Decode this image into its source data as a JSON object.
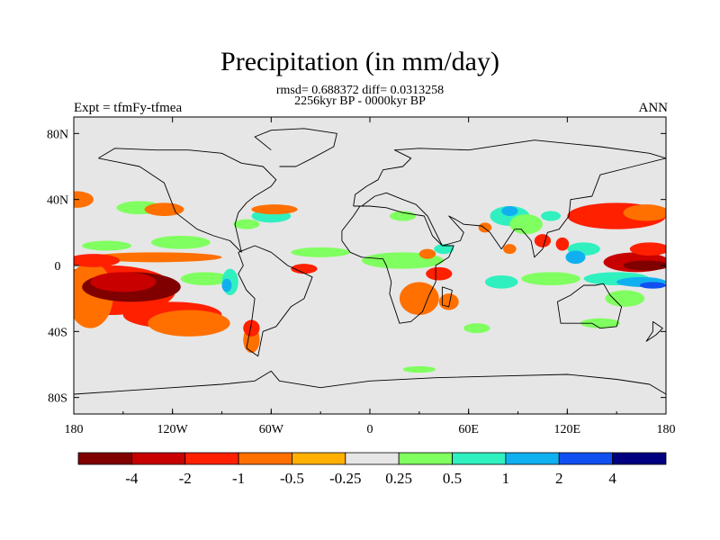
{
  "chart_data": {
    "type": "heatmap",
    "title": "Precipitation (in mm/day)",
    "subtitle_stats": "rmsd= 0.688372 diff= 0.0313258",
    "subtitle_period": "2256kyr BP - 0000kyr BP",
    "left_label": "Expt = tfmFy-tfmea",
    "right_label": "ANN",
    "x_range": [
      -180,
      180
    ],
    "y_range": [
      -90,
      90
    ],
    "x_ticks": [
      {
        "value": -180,
        "label": "180"
      },
      {
        "value": -120,
        "label": "120W"
      },
      {
        "value": -60,
        "label": "60W"
      },
      {
        "value": 0,
        "label": "0"
      },
      {
        "value": 60,
        "label": "60E"
      },
      {
        "value": 120,
        "label": "120E"
      },
      {
        "value": 180,
        "label": "180"
      }
    ],
    "y_ticks": [
      {
        "value": 80,
        "label": "80N"
      },
      {
        "value": 40,
        "label": "40N"
      },
      {
        "value": 0,
        "label": "0"
      },
      {
        "value": -40,
        "label": "40S"
      },
      {
        "value": -80,
        "label": "80S"
      }
    ],
    "colorbar": {
      "colors": [
        "#800000",
        "#c80000",
        "#ff2000",
        "#ff7000",
        "#ffb000",
        "#e6e6e6",
        "#80ff60",
        "#30f0c0",
        "#10b0f0",
        "#1050f0",
        "#000080"
      ],
      "labels": [
        "-4",
        "-2",
        "-1",
        "-0.5",
        "-0.25",
        "0.25",
        "0.5",
        "1",
        "2",
        "4"
      ]
    },
    "anomaly_regions": [
      {
        "lon": -145,
        "lat": -13,
        "rlon": 30,
        "rlat": 9,
        "level": -4
      },
      {
        "lon": -150,
        "lat": -10,
        "rlon": 20,
        "rlat": 6,
        "level": -3
      },
      {
        "lon": -158,
        "lat": -15,
        "rlon": 40,
        "rlat": 15,
        "level": -1
      },
      {
        "lon": -120,
        "lat": -30,
        "rlon": 30,
        "rlat": 8,
        "level": -1
      },
      {
        "lon": -168,
        "lat": 3,
        "rlon": 16,
        "rlat": 4,
        "level": -1
      },
      {
        "lon": -170,
        "lat": -18,
        "rlon": 14,
        "rlat": 20,
        "level": -0.5
      },
      {
        "lon": -110,
        "lat": -35,
        "rlon": 25,
        "rlat": 8,
        "level": -0.5
      },
      {
        "lon": -130,
        "lat": 5,
        "rlon": 40,
        "rlat": 3,
        "level": -0.5
      },
      {
        "lon": -178,
        "lat": 40,
        "rlon": 10,
        "rlat": 5,
        "level": -0.5
      },
      {
        "lon": -125,
        "lat": 34,
        "rlon": 12,
        "rlat": 4,
        "level": -0.5
      },
      {
        "lon": -58,
        "lat": 34,
        "rlon": 14,
        "rlat": 3,
        "level": -0.5
      },
      {
        "lon": -72,
        "lat": -38,
        "rlon": 5,
        "rlat": 5,
        "level": -1
      },
      {
        "lon": -72,
        "lat": -45,
        "rlon": 5,
        "rlat": 8,
        "level": -0.5
      },
      {
        "lon": -40,
        "lat": -2,
        "rlon": 8,
        "rlat": 3,
        "level": -1
      },
      {
        "lon": 42,
        "lat": -5,
        "rlon": 8,
        "rlat": 4,
        "level": -1
      },
      {
        "lon": 30,
        "lat": -20,
        "rlon": 12,
        "rlat": 10,
        "level": -0.5
      },
      {
        "lon": 48,
        "lat": -22,
        "rlon": 6,
        "rlat": 5,
        "level": -0.5
      },
      {
        "lon": 35,
        "lat": 7,
        "rlon": 5,
        "rlat": 3,
        "level": -0.5
      },
      {
        "lon": 150,
        "lat": 30,
        "rlon": 30,
        "rlat": 8,
        "level": -1
      },
      {
        "lon": 168,
        "lat": 32,
        "rlon": 14,
        "rlat": 5,
        "level": -0.5
      },
      {
        "lon": 162,
        "lat": 2,
        "rlon": 20,
        "rlat": 6,
        "level": -2
      },
      {
        "lon": 168,
        "lat": 0,
        "rlon": 14,
        "rlat": 3,
        "level": -4
      },
      {
        "lon": 170,
        "lat": 10,
        "rlon": 12,
        "rlat": 4,
        "level": -1
      },
      {
        "lon": 105,
        "lat": 15,
        "rlon": 5,
        "rlat": 4,
        "level": -1
      },
      {
        "lon": 117,
        "lat": 13,
        "rlon": 4,
        "rlat": 4,
        "level": -1
      },
      {
        "lon": 85,
        "lat": 10,
        "rlon": 4,
        "rlat": 3,
        "level": -0.5
      },
      {
        "lon": 70,
        "lat": 23,
        "rlon": 4,
        "rlat": 3,
        "level": -0.5
      },
      {
        "lon": -160,
        "lat": 12,
        "rlon": 15,
        "rlat": 3,
        "level": 0.5
      },
      {
        "lon": -100,
        "lat": -8,
        "rlon": 15,
        "rlat": 4,
        "level": 0.5
      },
      {
        "lon": -115,
        "lat": 14,
        "rlon": 18,
        "rlat": 4,
        "level": 0.5
      },
      {
        "lon": -85,
        "lat": -10,
        "rlon": 5,
        "rlat": 8,
        "level": 1
      },
      {
        "lon": -87,
        "lat": -12,
        "rlon": 3,
        "rlat": 4,
        "level": 2
      },
      {
        "lon": -60,
        "lat": 30,
        "rlon": 12,
        "rlat": 4,
        "level": 1
      },
      {
        "lon": -75,
        "lat": 25,
        "rlon": 8,
        "rlat": 3,
        "level": 0.5
      },
      {
        "lon": -140,
        "lat": 35,
        "rlon": 14,
        "rlat": 4,
        "level": 0.5
      },
      {
        "lon": -30,
        "lat": 8,
        "rlon": 18,
        "rlat": 3,
        "level": 0.5
      },
      {
        "lon": 20,
        "lat": 3,
        "rlon": 25,
        "rlat": 5,
        "level": 0.5
      },
      {
        "lon": 45,
        "lat": 10,
        "rlon": 6,
        "rlat": 3,
        "level": 1
      },
      {
        "lon": 85,
        "lat": 30,
        "rlon": 12,
        "rlat": 6,
        "level": 1
      },
      {
        "lon": 85,
        "lat": 33,
        "rlon": 5,
        "rlat": 3,
        "level": 2
      },
      {
        "lon": 95,
        "lat": 25,
        "rlon": 10,
        "rlat": 6,
        "level": 0.5
      },
      {
        "lon": 110,
        "lat": 30,
        "rlon": 6,
        "rlat": 3,
        "level": 1
      },
      {
        "lon": 130,
        "lat": 10,
        "rlon": 10,
        "rlat": 4,
        "level": 1
      },
      {
        "lon": 125,
        "lat": 5,
        "rlon": 6,
        "rlat": 4,
        "level": 2
      },
      {
        "lon": 150,
        "lat": -8,
        "rlon": 20,
        "rlat": 4,
        "level": 1
      },
      {
        "lon": 165,
        "lat": -10,
        "rlon": 15,
        "rlat": 3,
        "level": 2
      },
      {
        "lon": 172,
        "lat": -12,
        "rlon": 8,
        "rlat": 2,
        "level": 4
      },
      {
        "lon": 110,
        "lat": -8,
        "rlon": 18,
        "rlat": 4,
        "level": 0.5
      },
      {
        "lon": 80,
        "lat": -10,
        "rlon": 10,
        "rlat": 4,
        "level": 1
      },
      {
        "lon": 140,
        "lat": -35,
        "rlon": 12,
        "rlat": 3,
        "level": 0.5
      },
      {
        "lon": 65,
        "lat": -38,
        "rlon": 8,
        "rlat": 3,
        "level": 0.5
      },
      {
        "lon": 30,
        "lat": -63,
        "rlon": 10,
        "rlat": 2,
        "level": 0.5
      },
      {
        "lon": 20,
        "lat": 30,
        "rlon": 8,
        "rlat": 3,
        "level": 0.5
      },
      {
        "lon": 155,
        "lat": -20,
        "rlon": 12,
        "rlat": 5,
        "level": 0.5
      }
    ],
    "land_outlines": [
      {
        "name": "north-america",
        "points": [
          [
            -165,
            65
          ],
          [
            -140,
            60
          ],
          [
            -125,
            50
          ],
          [
            -118,
            32
          ],
          [
            -105,
            22
          ],
          [
            -95,
            18
          ],
          [
            -85,
            15
          ],
          [
            -78,
            8
          ],
          [
            -82,
            25
          ],
          [
            -80,
            32
          ],
          [
            -75,
            38
          ],
          [
            -70,
            42
          ],
          [
            -65,
            45
          ],
          [
            -60,
            48
          ],
          [
            -57,
            52
          ],
          [
            -65,
            60
          ],
          [
            -78,
            62
          ],
          [
            -90,
            68
          ],
          [
            -110,
            70
          ],
          [
            -130,
            70
          ],
          [
            -155,
            71
          ],
          [
            -165,
            65
          ]
        ]
      },
      {
        "name": "greenland",
        "points": [
          [
            -55,
            60
          ],
          [
            -45,
            60
          ],
          [
            -35,
            65
          ],
          [
            -22,
            72
          ],
          [
            -20,
            80
          ],
          [
            -40,
            83
          ],
          [
            -60,
            82
          ],
          [
            -70,
            78
          ],
          [
            -60,
            70
          ]
        ]
      },
      {
        "name": "south-america",
        "points": [
          [
            -80,
            8
          ],
          [
            -77,
            0
          ],
          [
            -80,
            -5
          ],
          [
            -75,
            -15
          ],
          [
            -70,
            -20
          ],
          [
            -72,
            -35
          ],
          [
            -75,
            -50
          ],
          [
            -68,
            -55
          ],
          [
            -65,
            -40
          ],
          [
            -57,
            -37
          ],
          [
            -48,
            -25
          ],
          [
            -40,
            -20
          ],
          [
            -35,
            -7
          ],
          [
            -50,
            0
          ],
          [
            -60,
            8
          ],
          [
            -70,
            12
          ],
          [
            -80,
            8
          ]
        ]
      },
      {
        "name": "eurasia",
        "points": [
          [
            -10,
            36
          ],
          [
            -9,
            43
          ],
          [
            -2,
            48
          ],
          [
            5,
            52
          ],
          [
            8,
            58
          ],
          [
            20,
            60
          ],
          [
            25,
            65
          ],
          [
            15,
            70
          ],
          [
            30,
            71
          ],
          [
            60,
            70
          ],
          [
            80,
            73
          ],
          [
            100,
            76
          ],
          [
            140,
            72
          ],
          [
            170,
            68
          ],
          [
            180,
            65
          ],
          [
            160,
            60
          ],
          [
            140,
            55
          ],
          [
            135,
            42
          ],
          [
            122,
            40
          ],
          [
            121,
            30
          ],
          [
            115,
            22
          ],
          [
            108,
            20
          ],
          [
            105,
            10
          ],
          [
            100,
            5
          ],
          [
            98,
            15
          ],
          [
            92,
            22
          ],
          [
            88,
            22
          ],
          [
            80,
            10
          ],
          [
            73,
            20
          ],
          [
            68,
            24
          ],
          [
            57,
            25
          ],
          [
            52,
            28
          ],
          [
            48,
            30
          ],
          [
            57,
            20
          ],
          [
            55,
            15
          ],
          [
            44,
            12
          ],
          [
            35,
            30
          ],
          [
            28,
            37
          ],
          [
            20,
            40
          ],
          [
            10,
            44
          ],
          [
            3,
            42
          ],
          [
            -5,
            36
          ],
          [
            -10,
            36
          ]
        ]
      },
      {
        "name": "africa",
        "points": [
          [
            -17,
            21
          ],
          [
            -17,
            15
          ],
          [
            -12,
            8
          ],
          [
            -5,
            5
          ],
          [
            8,
            4
          ],
          [
            10,
            0
          ],
          [
            13,
            -10
          ],
          [
            12,
            -17
          ],
          [
            18,
            -35
          ],
          [
            25,
            -34
          ],
          [
            32,
            -28
          ],
          [
            36,
            -18
          ],
          [
            40,
            -10
          ],
          [
            40,
            0
          ],
          [
            48,
            5
          ],
          [
            51,
            12
          ],
          [
            44,
            12
          ],
          [
            38,
            18
          ],
          [
            33,
            30
          ],
          [
            20,
            32
          ],
          [
            10,
            35
          ],
          [
            0,
            36
          ],
          [
            -6,
            36
          ],
          [
            -10,
            30
          ],
          [
            -17,
            21
          ]
        ]
      },
      {
        "name": "madagascar",
        "points": [
          [
            44,
            -13
          ],
          [
            50,
            -15
          ],
          [
            48,
            -25
          ],
          [
            44,
            -24
          ],
          [
            44,
            -13
          ]
        ]
      },
      {
        "name": "australia",
        "points": [
          [
            114,
            -22
          ],
          [
            122,
            -18
          ],
          [
            130,
            -12
          ],
          [
            137,
            -12
          ],
          [
            142,
            -11
          ],
          [
            146,
            -18
          ],
          [
            153,
            -25
          ],
          [
            150,
            -37
          ],
          [
            140,
            -38
          ],
          [
            135,
            -35
          ],
          [
            116,
            -35
          ],
          [
            114,
            -22
          ]
        ]
      },
      {
        "name": "new-zealand",
        "points": [
          [
            172,
            -34
          ],
          [
            178,
            -38
          ],
          [
            174,
            -42
          ],
          [
            168,
            -46
          ],
          [
            172,
            -40
          ],
          [
            172,
            -34
          ]
        ]
      },
      {
        "name": "antarctica",
        "points": [
          [
            -180,
            -78
          ],
          [
            -150,
            -76
          ],
          [
            -120,
            -74
          ],
          [
            -90,
            -72
          ],
          [
            -70,
            -70
          ],
          [
            -60,
            -64
          ],
          [
            -55,
            -70
          ],
          [
            -30,
            -74
          ],
          [
            0,
            -70
          ],
          [
            40,
            -68
          ],
          [
            80,
            -67
          ],
          [
            120,
            -66
          ],
          [
            150,
            -69
          ],
          [
            170,
            -72
          ],
          [
            180,
            -78
          ]
        ]
      }
    ]
  }
}
